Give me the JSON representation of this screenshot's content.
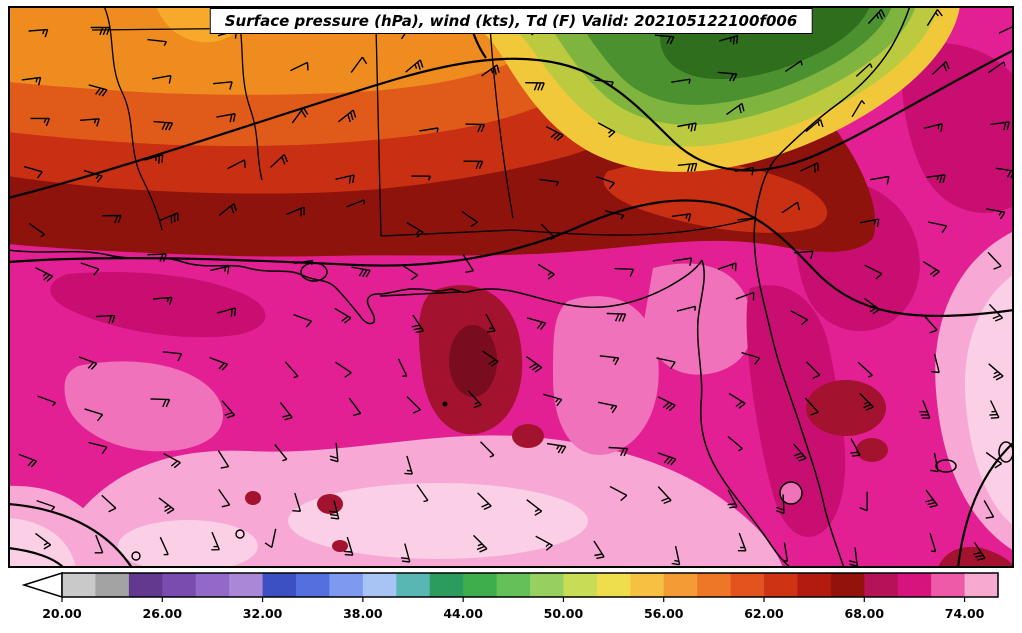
{
  "title": {
    "text": "Surface pressure (hPa), wind (kts), Td (F) Valid: 202105122100f006"
  },
  "colorbar": {
    "tick_labels": [
      "20.00",
      "26.00",
      "32.00",
      "38.00",
      "44.00",
      "50.00",
      "56.00",
      "62.00",
      "68.00",
      "74.00"
    ],
    "segment_colors": [
      "#c9c9c9",
      "#a3a3a3",
      "#61398f",
      "#7a4cb0",
      "#9268c8",
      "#ab87d8",
      "#3d50c3",
      "#5470de",
      "#7d9af0",
      "#a7c4f4",
      "#58b7b3",
      "#2c9c5e",
      "#3dae4b",
      "#66c05a",
      "#97cf60",
      "#c8dc55",
      "#eede4e",
      "#f6c143",
      "#f49b35",
      "#ee7727",
      "#e2531d",
      "#ce3414",
      "#b21c0e",
      "#93120b",
      "#b51257",
      "#d6147e",
      "#ee5aa8",
      "#f8a9cf"
    ],
    "under_arrow_color": "#ffffff",
    "border_color": "#000000"
  },
  "map_palette": {
    "magenta": "#e32093",
    "magenta_deep": "#c90e72",
    "pink": "#ef72ba",
    "pink_light": "#f7a8d4",
    "pink_pale": "#fbcfe5",
    "maroon": "#a3122e",
    "maroon_dark": "#7a0c1f",
    "dark_red": "#8e130c",
    "red": "#c92f12",
    "orange_red": "#e05a1a",
    "orange": "#ef8c1f",
    "orange_light": "#f6a92b",
    "yellow": "#f2c83b",
    "yellow_green": "#bcca40",
    "green_light": "#7fb53f",
    "green": "#4b9130",
    "green_dark": "#2e6e1d"
  },
  "contours": {
    "line_color": "#000000"
  },
  "wind": {
    "barb_color": "#000000",
    "shaft_length": 19,
    "grid_dx": 64,
    "grid_dy": 46
  }
}
